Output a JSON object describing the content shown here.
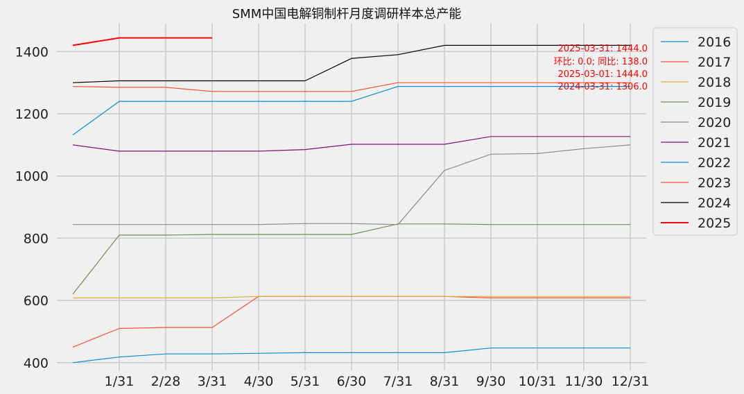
{
  "chart_data": {
    "type": "line",
    "title": "SMM中国电解铜制杆月度调研样本总产能",
    "xlabel": "",
    "ylabel": "",
    "x_positions": [
      0,
      1,
      2,
      3,
      4,
      5,
      6,
      7,
      8,
      9,
      10,
      11,
      12
    ],
    "tick_labels": [
      "1/31",
      "2/28",
      "3/31",
      "4/30",
      "5/31",
      "6/30",
      "7/31",
      "8/31",
      "9/30",
      "10/31",
      "11/30",
      "12/31"
    ],
    "yticks": [
      400,
      600,
      800,
      1000,
      1200,
      1400
    ],
    "ylim": [
      375,
      1490
    ],
    "grid": true,
    "legend_position": "outside-right",
    "series": [
      {
        "name": "2016",
        "color": "#008fd5",
        "width": 1.2,
        "values": [
          400,
          418,
          428,
          428,
          430,
          432,
          432,
          432,
          432,
          447,
          447,
          447,
          447
        ]
      },
      {
        "name": "2017",
        "color": "#fc4f30",
        "width": 1.2,
        "values": [
          450,
          510,
          513,
          513,
          613,
          613,
          613,
          613,
          613,
          608,
          608,
          608,
          608
        ]
      },
      {
        "name": "2018",
        "color": "#e5ae38",
        "width": 1.2,
        "values": [
          608,
          608,
          608,
          608,
          613,
          613,
          613,
          613,
          613,
          613,
          613,
          613,
          613
        ]
      },
      {
        "name": "2019",
        "color": "#6d904f",
        "width": 1.2,
        "values": [
          620,
          810,
          810,
          812,
          812,
          812,
          812,
          846,
          846,
          844,
          844,
          844,
          844
        ]
      },
      {
        "name": "2020",
        "color": "#8b8b8b",
        "width": 1.2,
        "values": [
          844,
          844,
          844,
          844,
          844,
          847,
          847,
          844,
          1018,
          1070,
          1072,
          1088,
          1100
        ]
      },
      {
        "name": "2021",
        "color": "#810f7c",
        "width": 1.2,
        "values": [
          1100,
          1080,
          1080,
          1080,
          1080,
          1085,
          1102,
          1102,
          1102,
          1127,
          1127,
          1127,
          1127
        ]
      },
      {
        "name": "2022",
        "color": "#008fd5",
        "width": 1.2,
        "values": [
          1132,
          1240,
          1240,
          1240,
          1240,
          1240,
          1240,
          1288,
          1288,
          1288,
          1288,
          1288,
          1288
        ]
      },
      {
        "name": "2023",
        "color": "#fc4f30",
        "width": 1.2,
        "values": [
          1288,
          1285,
          1285,
          1272,
          1272,
          1272,
          1272,
          1300,
          1300,
          1300,
          1300,
          1300,
          1300
        ]
      },
      {
        "name": "2024",
        "color": "#000000",
        "width": 1.2,
        "values": [
          1300,
          1306,
          1306,
          1306,
          1306,
          1306,
          1378,
          1390,
          1420,
          1420,
          1420,
          1420,
          1420
        ]
      },
      {
        "name": "2025",
        "color": "#ff0000",
        "width": 2.0,
        "values": [
          1420,
          1444,
          1444,
          1444
        ]
      }
    ],
    "annotations": [
      "2025-03-31: 1444.0",
      "环比: 0.0; 同比: 138.0",
      "2025-03-01: 1444.0",
      "2024-03-31: 1306.0"
    ]
  }
}
